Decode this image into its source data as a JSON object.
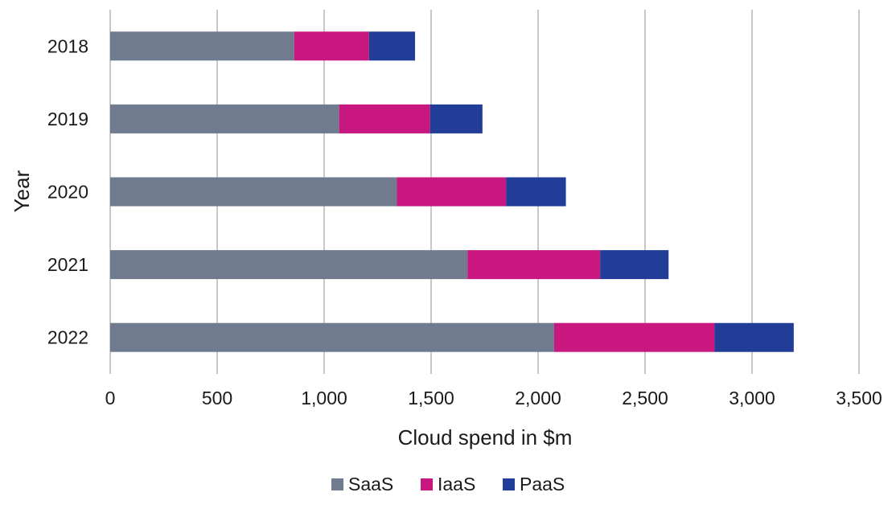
{
  "chart_data": {
    "type": "bar",
    "orientation": "horizontal",
    "stacked": true,
    "categories": [
      "2018",
      "2019",
      "2020",
      "2021",
      "2022"
    ],
    "series": [
      {
        "name": "SaaS",
        "color": "#717b8f",
        "values": [
          860,
          1070,
          1340,
          1670,
          2075
        ]
      },
      {
        "name": "IaaS",
        "color": "#c8187f",
        "values": [
          350,
          425,
          510,
          620,
          750
        ]
      },
      {
        "name": "PaaS",
        "color": "#223d97",
        "values": [
          215,
          245,
          280,
          320,
          370
        ]
      }
    ],
    "xlabel": "Cloud spend in $m",
    "ylabel": "Year",
    "xlim": [
      0,
      3500
    ],
    "xticks": [
      0,
      500,
      1000,
      1500,
      2000,
      2500,
      3000,
      3500
    ],
    "xtick_labels": [
      "0",
      "500",
      "1,000",
      "1,500",
      "2,000",
      "2,500",
      "3,000",
      "3,500"
    ],
    "grid": "vertical",
    "legend_position": "bottom"
  }
}
